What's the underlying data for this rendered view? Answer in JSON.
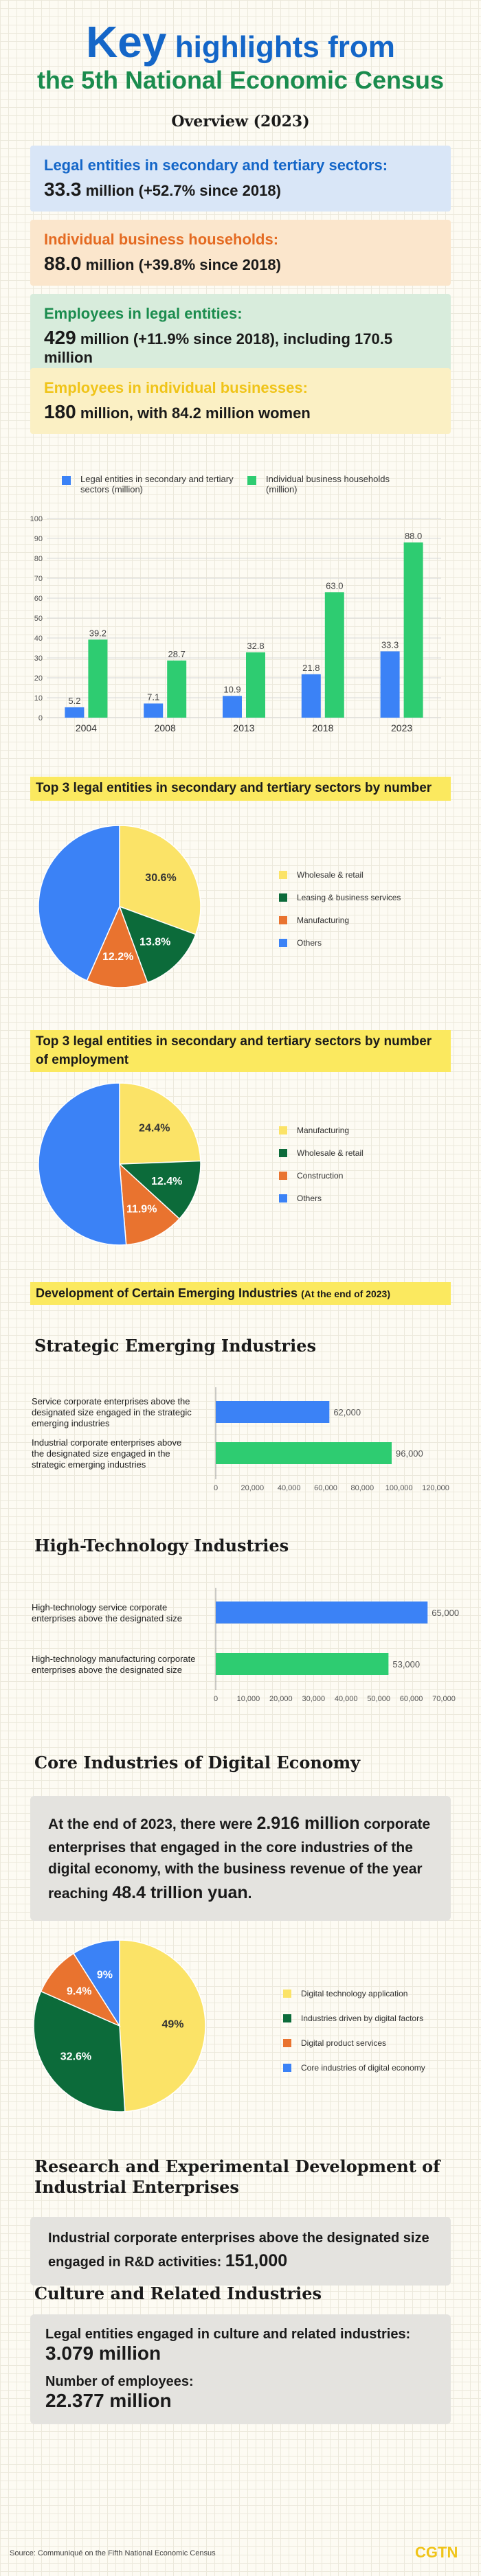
{
  "header": {
    "title_big": "Key",
    "title_rest": "highlights from",
    "title_line2": "the 5th National Economic Census",
    "overview": "Overview (2023)"
  },
  "highlights": [
    {
      "label": "Legal entities in secondary and tertiary sectors:",
      "value": "33.3",
      "rest": " million (+52.7% since 2018)",
      "bg": "#d9e6f7",
      "color": "#1466c8"
    },
    {
      "label": "Individual business households:",
      "value": "88.0",
      "rest": " million (+39.8% since 2018)",
      "bg": "#fbe6cc",
      "color": "#e46a21"
    },
    {
      "label": "Employees in legal entities:",
      "value": "429",
      "rest": " million (+11.9% since 2018), including 170.5 million",
      "bg": "#d8ecdc",
      "color": "#1b8c4e"
    },
    {
      "label": "Employees in individual businesses:",
      "value": "180",
      "rest": " million, with 84.2 million women",
      "bg": "#fbf0c4",
      "color": "#f0c419"
    }
  ],
  "chart_data": [
    {
      "type": "bar",
      "categories": [
        "2004",
        "2008",
        "2013",
        "2018",
        "2023"
      ],
      "series": [
        {
          "name": "Legal entities in secondary and tertiary sectors (million)",
          "values": [
            5.2,
            7.1,
            10.9,
            21.8,
            33.3
          ],
          "color": "#3b82f6"
        },
        {
          "name": "Individual business households (million)",
          "values": [
            39.2,
            28.7,
            32.8,
            63.0,
            88.0
          ],
          "color": "#2ecc71"
        }
      ],
      "ylim": [
        0,
        100
      ],
      "yticks": [
        0,
        10,
        20,
        30,
        40,
        50,
        60,
        70,
        80,
        90,
        100
      ]
    },
    {
      "type": "pie",
      "title": "Top 3 legal entities in secondary and tertiary sectors by number",
      "labels": [
        "Wholesale & retail",
        "Leasing & business services",
        "Manufacturing",
        "Others"
      ],
      "values": [
        30.6,
        13.8,
        12.2,
        43.4
      ],
      "colors": [
        "#fbe367",
        "#0c6b3a",
        "#e9732f",
        "#3b82f6"
      ]
    },
    {
      "type": "pie",
      "title": "Top 3 legal entities in secondary and tertiary sectors by number of employment",
      "labels": [
        "Manufacturing",
        "Wholesale & retail",
        "Construction",
        "Others"
      ],
      "values": [
        24.4,
        12.4,
        11.9,
        51.3
      ],
      "colors": [
        "#fbe367",
        "#0c6b3a",
        "#e9732f",
        "#3b82f6"
      ]
    },
    {
      "type": "bar",
      "title": "Strategic Emerging Industries",
      "orientation": "horizontal",
      "categories": [
        "Service corporate enterprises above the designated size engaged in the strategic emerging industries",
        "Industrial corporate enterprises above the designated size engaged in the strategic emerging industries"
      ],
      "values": [
        62000,
        96000
      ],
      "colors": [
        "#3b82f6",
        "#2ecc71"
      ],
      "xlim": [
        0,
        120000
      ],
      "xticks": [
        "0",
        "20,000",
        "40,000",
        "60,000",
        "80,000",
        "100,000",
        "120,000"
      ]
    },
    {
      "type": "bar",
      "title": "High-Technology Industries",
      "orientation": "horizontal",
      "categories": [
        "High-technology service corporate enterprises above the designated size",
        "High-technology manufacturing corporate enterprises above the designated size"
      ],
      "values": [
        65000,
        53000
      ],
      "colors": [
        "#3b82f6",
        "#2ecc71"
      ],
      "xlim": [
        0,
        70000
      ],
      "xticks": [
        "0",
        "10,000",
        "20,000",
        "30,000",
        "40,000",
        "50,000",
        "60,000",
        "70,000"
      ]
    },
    {
      "type": "pie",
      "labels": [
        "Digital technology application",
        "Industries driven by digital factors",
        "Digital product services",
        "Core industries of digital economy"
      ],
      "values": [
        49,
        32.6,
        9.4,
        9.0
      ],
      "colors": [
        "#fbe367",
        "#0c6b3a",
        "#e9732f",
        "#3b82f6"
      ]
    }
  ],
  "emerging": {
    "title": "Development of Certain Emerging Industries",
    "note": "(At the end of 2023)"
  },
  "digital": {
    "title": "Core Industries of Digital Economy",
    "text_a": "At the end of 2023, there were ",
    "num_a": "2.916 million",
    "text_b": " corporate enterprises that engaged in the core industries of the digital economy, with the business revenue of the year reaching ",
    "num_b": "48.4 trillion yuan",
    "text_c": "."
  },
  "rd": {
    "title": "Research and Experimental Development of Industrial Enterprises",
    "text": "Industrial corporate enterprises above the designated size engaged in R&D activities: ",
    "num": "151,000"
  },
  "culture": {
    "title": "Culture and Related Industries",
    "label1": "Legal entities engaged in culture and related industries:",
    "value1": "3.079 million",
    "label2": "Number of employees:",
    "value2": "22.377 million"
  },
  "footer": {
    "source": "Source: Communiqué on the Fifth National Economic Census",
    "brand": "CGTN"
  }
}
